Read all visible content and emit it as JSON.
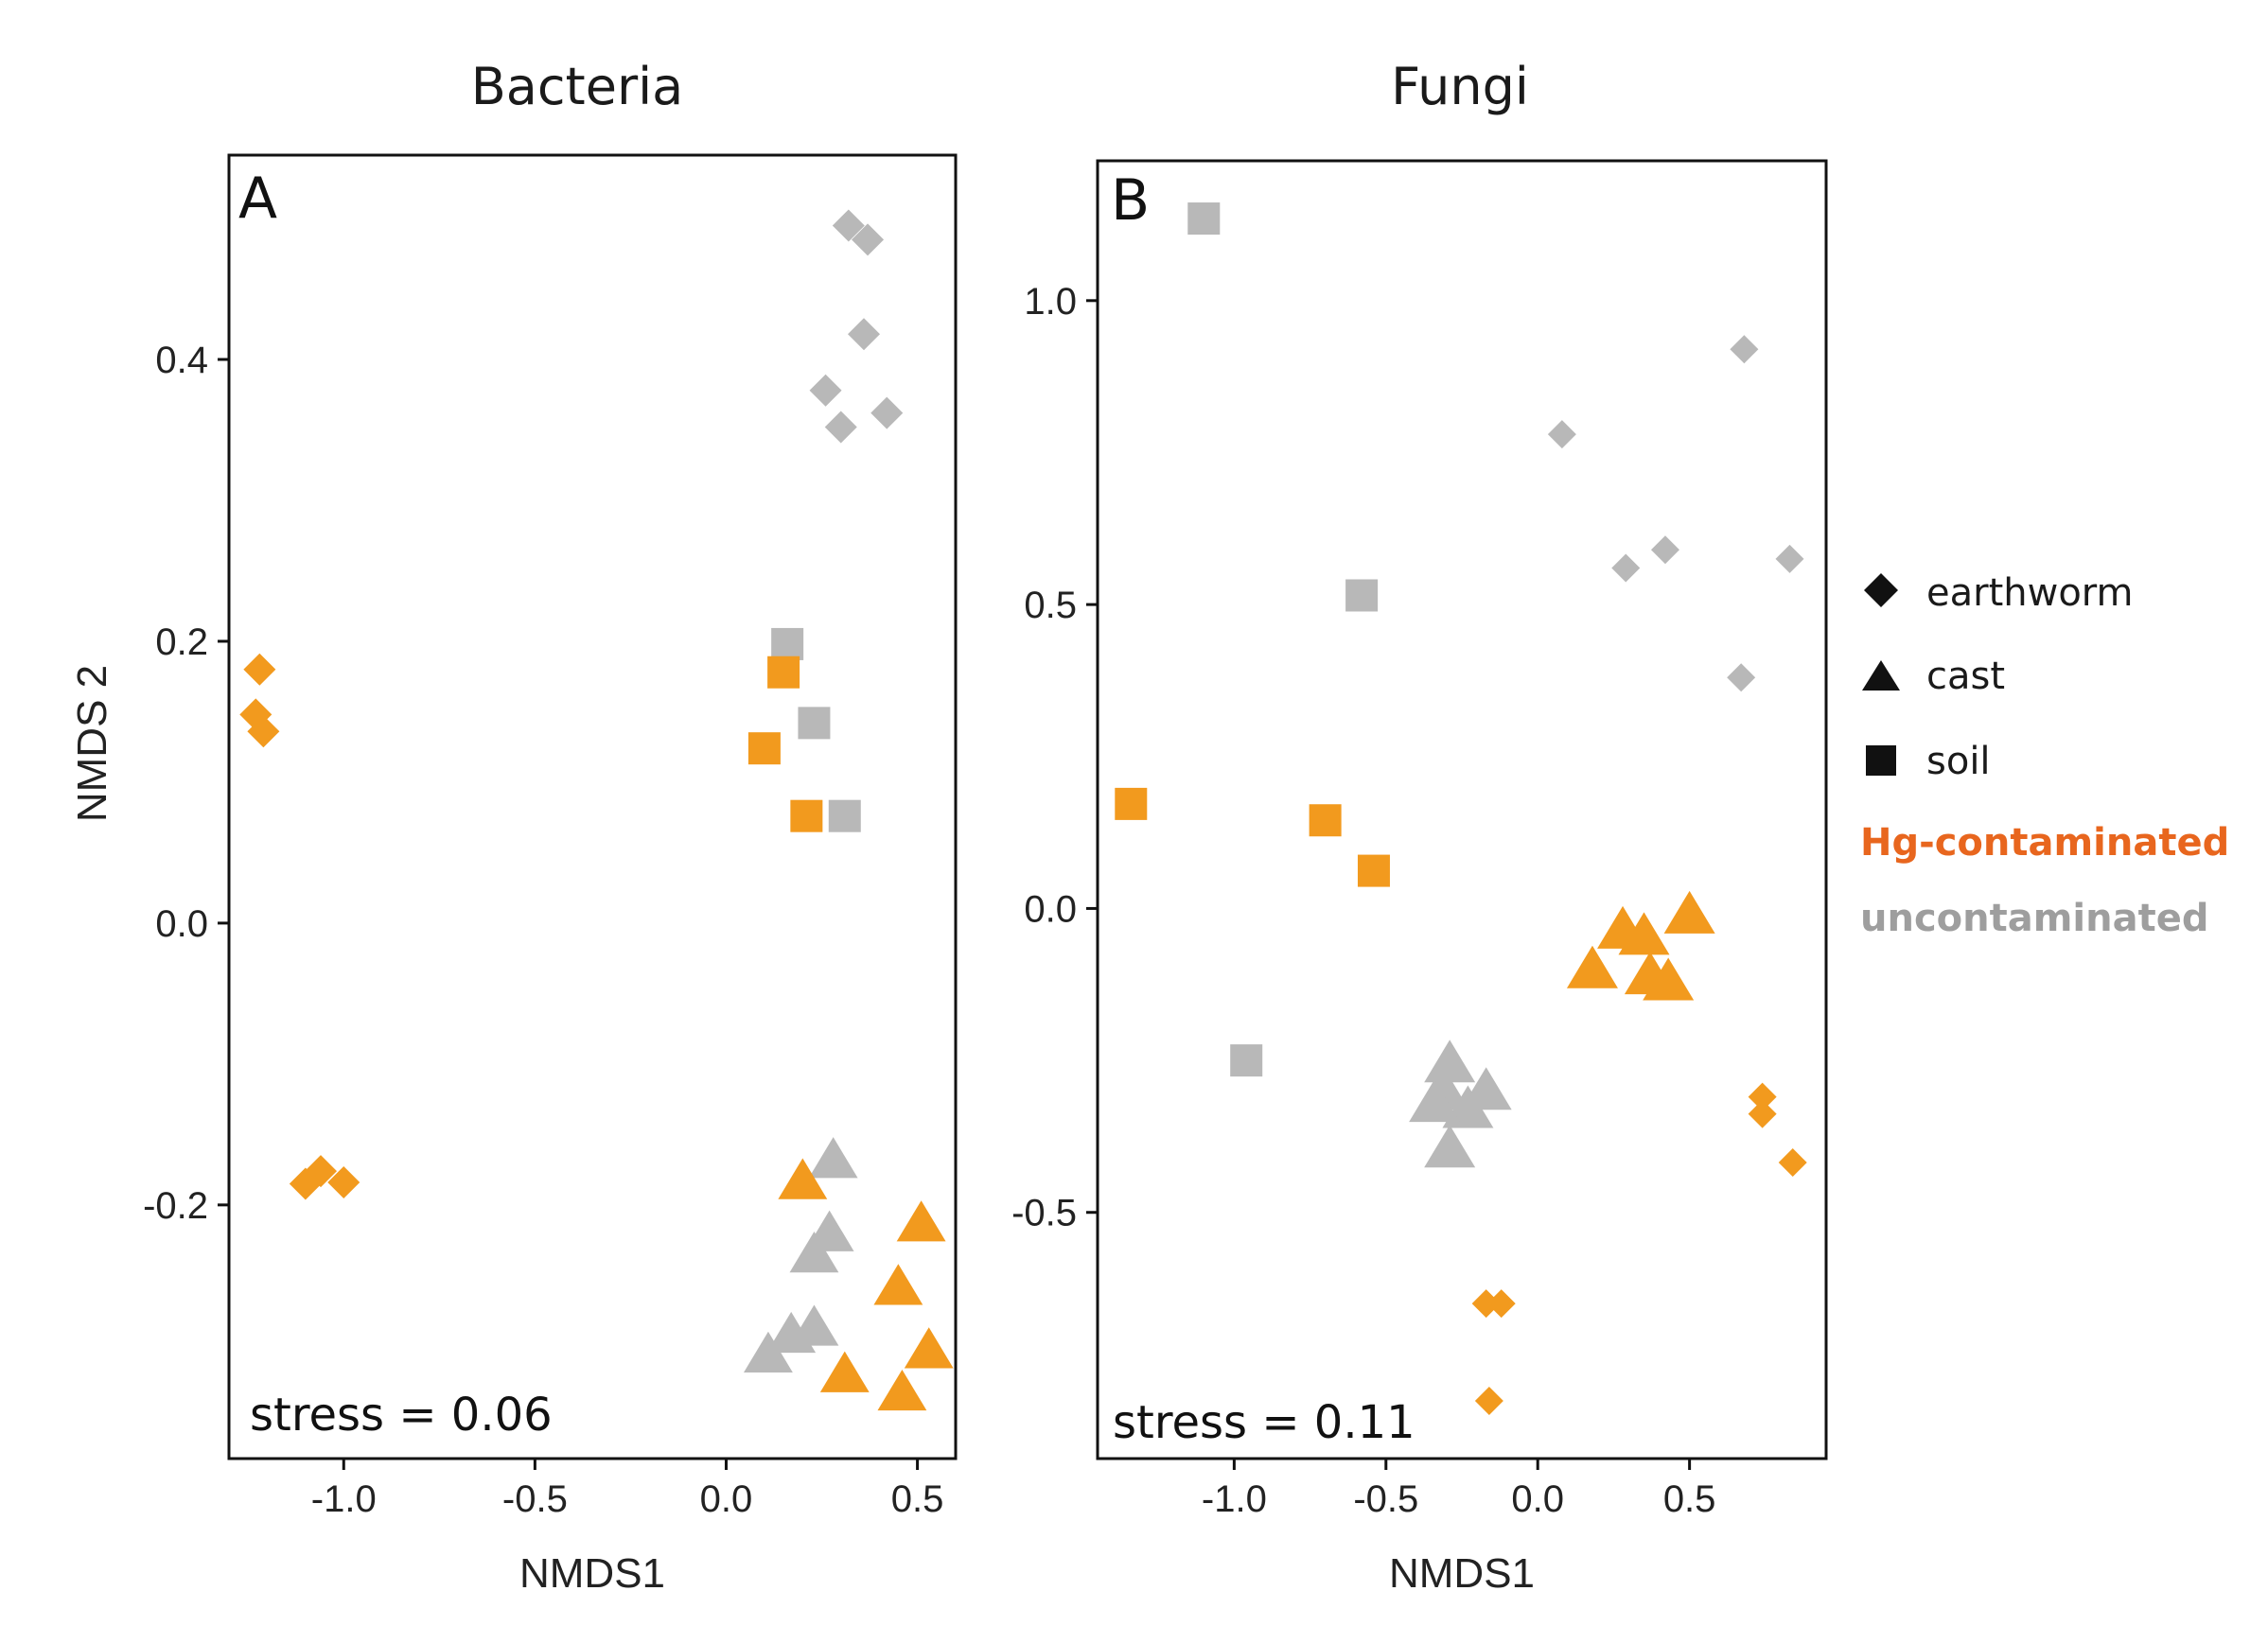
{
  "colors": {
    "contaminated_marker": "#f29a1e",
    "uncontaminated_marker": "#b8b8b8",
    "contaminated_text": "#e8661e",
    "uncontaminated_text": "#9e9e9e"
  },
  "legend": {
    "shapes": [
      {
        "shape": "diamond",
        "label": "earthworm"
      },
      {
        "shape": "triangle",
        "label": "cast"
      },
      {
        "shape": "square",
        "label": "soil"
      }
    ],
    "groups": [
      {
        "group": "contaminated",
        "label": "Hg-contaminated"
      },
      {
        "group": "uncontaminated",
        "label": "uncontaminated"
      }
    ]
  },
  "chart_data": [
    {
      "type": "scatter",
      "panel": "A",
      "title": "Bacteria",
      "xlabel": "NMDS1",
      "ylabel": "NMDS 2",
      "xlim": [
        -1.3,
        0.6
      ],
      "ylim": [
        -0.38,
        0.545
      ],
      "xticks": [
        -1.0,
        -0.5,
        0.0,
        0.5
      ],
      "xtick_labels": [
        "-1.0",
        "-0.5",
        "0.0",
        "0.5"
      ],
      "yticks": [
        -0.2,
        0.0,
        0.2,
        0.4
      ],
      "ytick_labels": [
        "-0.2",
        "0.0",
        "0.2",
        "0.4"
      ],
      "stress_label": "stress = 0.06",
      "points": [
        {
          "x": 0.32,
          "y": 0.495,
          "shape": "diamond",
          "group": "uncontaminated"
        },
        {
          "x": 0.37,
          "y": 0.485,
          "shape": "diamond",
          "group": "uncontaminated"
        },
        {
          "x": 0.36,
          "y": 0.418,
          "shape": "diamond",
          "group": "uncontaminated"
        },
        {
          "x": 0.26,
          "y": 0.378,
          "shape": "diamond",
          "group": "uncontaminated"
        },
        {
          "x": 0.42,
          "y": 0.362,
          "shape": "diamond",
          "group": "uncontaminated"
        },
        {
          "x": 0.3,
          "y": 0.352,
          "shape": "diamond",
          "group": "uncontaminated"
        },
        {
          "x": 0.16,
          "y": 0.198,
          "shape": "square",
          "group": "uncontaminated"
        },
        {
          "x": 0.23,
          "y": 0.142,
          "shape": "square",
          "group": "uncontaminated"
        },
        {
          "x": 0.31,
          "y": 0.076,
          "shape": "square",
          "group": "uncontaminated"
        },
        {
          "x": 0.15,
          "y": 0.178,
          "shape": "square",
          "group": "contaminated"
        },
        {
          "x": 0.1,
          "y": 0.124,
          "shape": "square",
          "group": "contaminated"
        },
        {
          "x": 0.21,
          "y": 0.076,
          "shape": "square",
          "group": "contaminated"
        },
        {
          "x": -1.22,
          "y": 0.18,
          "shape": "diamond",
          "group": "contaminated"
        },
        {
          "x": -1.23,
          "y": 0.148,
          "shape": "diamond",
          "group": "contaminated"
        },
        {
          "x": -1.21,
          "y": 0.136,
          "shape": "diamond",
          "group": "contaminated"
        },
        {
          "x": -1.1,
          "y": -0.185,
          "shape": "diamond",
          "group": "contaminated"
        },
        {
          "x": -1.06,
          "y": -0.176,
          "shape": "diamond",
          "group": "contaminated"
        },
        {
          "x": -1.0,
          "y": -0.184,
          "shape": "diamond",
          "group": "contaminated"
        },
        {
          "x": 0.28,
          "y": -0.168,
          "shape": "triangle",
          "group": "uncontaminated"
        },
        {
          "x": 0.27,
          "y": -0.22,
          "shape": "triangle",
          "group": "uncontaminated"
        },
        {
          "x": 0.23,
          "y": -0.235,
          "shape": "triangle",
          "group": "uncontaminated"
        },
        {
          "x": 0.17,
          "y": -0.292,
          "shape": "triangle",
          "group": "uncontaminated"
        },
        {
          "x": 0.23,
          "y": -0.287,
          "shape": "triangle",
          "group": "uncontaminated"
        },
        {
          "x": 0.11,
          "y": -0.306,
          "shape": "triangle",
          "group": "uncontaminated"
        },
        {
          "x": 0.2,
          "y": -0.183,
          "shape": "triangle",
          "group": "contaminated"
        },
        {
          "x": 0.51,
          "y": -0.213,
          "shape": "triangle",
          "group": "contaminated"
        },
        {
          "x": 0.45,
          "y": -0.258,
          "shape": "triangle",
          "group": "contaminated"
        },
        {
          "x": 0.53,
          "y": -0.303,
          "shape": "triangle",
          "group": "contaminated"
        },
        {
          "x": 0.31,
          "y": -0.32,
          "shape": "triangle",
          "group": "contaminated"
        },
        {
          "x": 0.46,
          "y": -0.333,
          "shape": "triangle",
          "group": "contaminated"
        }
      ]
    },
    {
      "type": "scatter",
      "panel": "B",
      "title": "Fungi",
      "xlabel": "NMDS1",
      "ylabel": "",
      "xlim": [
        -1.45,
        0.95
      ],
      "ylim": [
        -0.905,
        1.23
      ],
      "xticks": [
        -1.0,
        -0.5,
        0.0,
        0.5
      ],
      "xtick_labels": [
        "-1.0",
        "-0.5",
        "0.0",
        "0.5"
      ],
      "yticks": [
        -0.5,
        0.0,
        0.5,
        1.0
      ],
      "ytick_labels": [
        "-0.5",
        "0.0",
        "0.5",
        "1.0"
      ],
      "stress_label": "stress = 0.11",
      "points": [
        {
          "x": -1.1,
          "y": 1.135,
          "shape": "square",
          "group": "uncontaminated"
        },
        {
          "x": -0.58,
          "y": 0.515,
          "shape": "square",
          "group": "uncontaminated"
        },
        {
          "x": -0.96,
          "y": -0.25,
          "shape": "square",
          "group": "uncontaminated"
        },
        {
          "x": -1.34,
          "y": 0.172,
          "shape": "square",
          "group": "contaminated"
        },
        {
          "x": -0.7,
          "y": 0.145,
          "shape": "square",
          "group": "contaminated"
        },
        {
          "x": -0.54,
          "y": 0.062,
          "shape": "square",
          "group": "contaminated"
        },
        {
          "x": 0.68,
          "y": 0.92,
          "shape": "diamond",
          "group": "uncontaminated"
        },
        {
          "x": 0.08,
          "y": 0.78,
          "shape": "diamond",
          "group": "uncontaminated"
        },
        {
          "x": 0.83,
          "y": 0.575,
          "shape": "diamond",
          "group": "uncontaminated"
        },
        {
          "x": 0.42,
          "y": 0.59,
          "shape": "diamond",
          "group": "uncontaminated"
        },
        {
          "x": 0.29,
          "y": 0.56,
          "shape": "diamond",
          "group": "uncontaminated"
        },
        {
          "x": 0.67,
          "y": 0.38,
          "shape": "diamond",
          "group": "uncontaminated"
        },
        {
          "x": 0.74,
          "y": -0.31,
          "shape": "diamond",
          "group": "contaminated"
        },
        {
          "x": 0.74,
          "y": -0.338,
          "shape": "diamond",
          "group": "contaminated"
        },
        {
          "x": 0.84,
          "y": -0.418,
          "shape": "diamond",
          "group": "contaminated"
        },
        {
          "x": -0.17,
          "y": -0.65,
          "shape": "diamond",
          "group": "contaminated"
        },
        {
          "x": -0.12,
          "y": -0.65,
          "shape": "diamond",
          "group": "contaminated"
        },
        {
          "x": -0.16,
          "y": -0.81,
          "shape": "diamond",
          "group": "contaminated"
        },
        {
          "x": 0.5,
          "y": -0.01,
          "shape": "triangle",
          "group": "contaminated"
        },
        {
          "x": 0.28,
          "y": -0.035,
          "shape": "triangle",
          "group": "contaminated"
        },
        {
          "x": 0.35,
          "y": -0.045,
          "shape": "triangle",
          "group": "contaminated"
        },
        {
          "x": 0.18,
          "y": -0.1,
          "shape": "triangle",
          "group": "contaminated"
        },
        {
          "x": 0.37,
          "y": -0.11,
          "shape": "triangle",
          "group": "contaminated"
        },
        {
          "x": 0.43,
          "y": -0.12,
          "shape": "triangle",
          "group": "contaminated"
        },
        {
          "x": -0.29,
          "y": -0.255,
          "shape": "triangle",
          "group": "uncontaminated"
        },
        {
          "x": -0.31,
          "y": -0.3,
          "shape": "triangle",
          "group": "uncontaminated"
        },
        {
          "x": -0.17,
          "y": -0.3,
          "shape": "triangle",
          "group": "uncontaminated"
        },
        {
          "x": -0.23,
          "y": -0.33,
          "shape": "triangle",
          "group": "uncontaminated"
        },
        {
          "x": -0.34,
          "y": -0.32,
          "shape": "triangle",
          "group": "uncontaminated"
        },
        {
          "x": -0.29,
          "y": -0.395,
          "shape": "triangle",
          "group": "uncontaminated"
        }
      ]
    }
  ]
}
